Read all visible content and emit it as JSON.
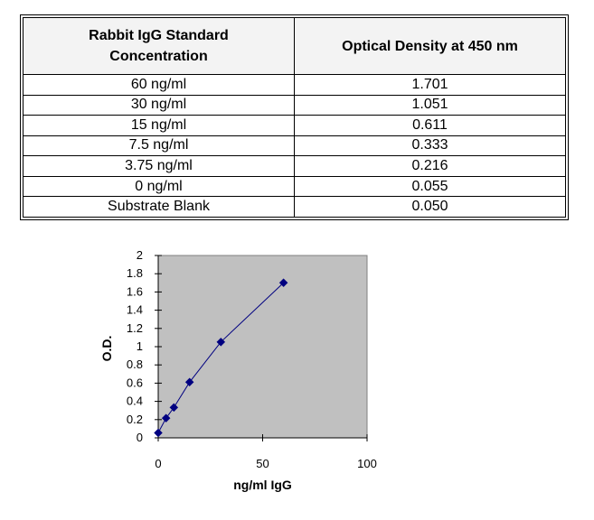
{
  "table": {
    "headers": {
      "concentration_line1": "Rabbit IgG Standard",
      "concentration_line2": "Concentration",
      "optical_density": "Optical Density at 450 nm"
    },
    "rows": [
      {
        "concentration": "60  ng/ml",
        "od": "1.701"
      },
      {
        "concentration": "30  ng/ml",
        "od": "1.051"
      },
      {
        "concentration": "15  ng/ml",
        "od": "0.611"
      },
      {
        "concentration": "7.5  ng/ml",
        "od": "0.333"
      },
      {
        "concentration": "3.75 ng/ml",
        "od": "0.216"
      },
      {
        "concentration": "0 ng/ml",
        "od": "0.055"
      },
      {
        "concentration": "Substrate Blank",
        "od": "0.050"
      }
    ]
  },
  "chart_data": {
    "type": "scatter",
    "title": "",
    "xlabel": "ng/ml IgG",
    "ylabel": "O.D.",
    "xlim": [
      0,
      100
    ],
    "ylim": [
      0,
      2
    ],
    "x_ticks": [
      0,
      50,
      100
    ],
    "x_tick_labels": [
      "0",
      "50",
      "100"
    ],
    "y_ticks": [
      0,
      0.2,
      0.4,
      0.6,
      0.8,
      1,
      1.2,
      1.4,
      1.6,
      1.8,
      2
    ],
    "y_tick_labels": [
      "0",
      "0.2",
      "0.4",
      "0.6",
      "0.8",
      "1",
      "1.2",
      "1.4",
      "1.6",
      "1.8",
      "2"
    ],
    "grid": false,
    "connected": true,
    "plot_background": "#c0c0c0",
    "series_color": "#000080",
    "series": [
      {
        "x": [
          0,
          3.75,
          7.5,
          15,
          30,
          60
        ],
        "y": [
          0.055,
          0.216,
          0.333,
          0.611,
          1.051,
          1.701
        ]
      }
    ]
  }
}
